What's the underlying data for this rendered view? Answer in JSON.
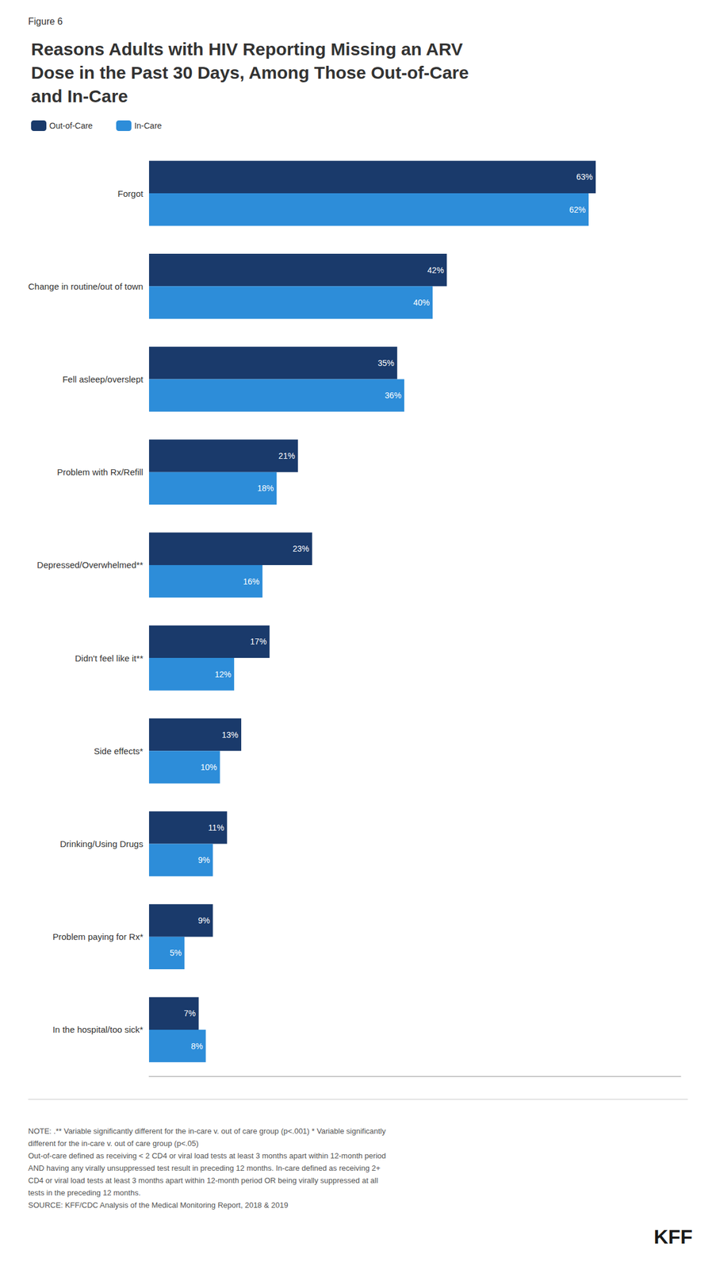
{
  "chart_data": {
    "type": "bar",
    "orientation": "horizontal",
    "title": "Reasons Adults with HIV Reporting Missing an ARV\nDose in the Past 30 Days, Among Those Out-of-Care\nand In-Care",
    "annotations": [
      "Figure 6",
      "NOTE: .** Variable significantly different for the in-care v. out of care group (p<.001) * Variable significantly\ndifferent for the in-care v. out of care group (p<.05)\nOut-of-care defined as receiving < 2 CD4 or viral load tests at least 3 months apart within 12-month period\nAND having any virally unsuppressed test result in preceding 12 months. In-care defined as receiving 2+\nCD4 or viral load tests at least 3 months apart within 12-month period OR being virally suppressed at all\ntests in the preceding 12 months.\nSOURCE: KFF/CDC Analysis of the Medical Monitoring Report, 2018 & 2019",
      "KFF"
    ],
    "categories": [
      "Forgot",
      "Change in routine/out of town",
      "Fell asleep/overslept",
      "Problem with Rx/Refill",
      "Depressed/Overwhelmed**",
      "Didn't feel like it**",
      "Side effects*",
      "Drinking/Using Drugs",
      "Problem paying for Rx*",
      "In the hospital/too sick*"
    ],
    "series": [
      {
        "name": "Out-of-Care",
        "color": "#1a3a6b",
        "values": [
          63,
          42,
          35,
          21,
          23,
          17,
          13,
          11,
          9,
          7
        ],
        "value_labels": [
          "63%",
          "42%",
          "35%",
          "21%",
          "23%",
          "17%",
          "13%",
          "11%",
          "9%",
          "7%"
        ]
      },
      {
        "name": "In-Care",
        "color": "#2d8dd9",
        "values": [
          62,
          40,
          36,
          18,
          16,
          12,
          10,
          9,
          5,
          8
        ],
        "value_labels": [
          "62%",
          "40%",
          "36%",
          "18%",
          "16%",
          "12%",
          "10%",
          "9%",
          "5%",
          "8%"
        ]
      }
    ],
    "xlim": [
      0,
      75
    ],
    "grid": false,
    "legend": "top-left",
    "data_labels": true,
    "tick_labels": "y"
  }
}
